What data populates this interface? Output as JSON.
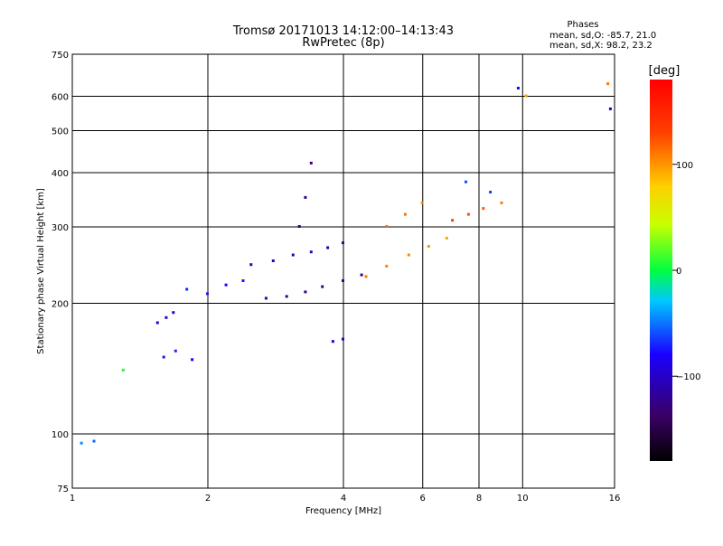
{
  "chart_data": {
    "type": "scatter",
    "title": "Tromsø 20171013 14:12:00–14:13:43",
    "subtitle": "RwPretec (8p)",
    "xlabel": "Frequency [MHz]",
    "ylabel": "Stationary phase Virtual Height [km]",
    "x_scale": "log",
    "y_scale": "log",
    "xlim": [
      1,
      16
    ],
    "ylim": [
      75,
      750
    ],
    "x_ticks": [
      1,
      2,
      4,
      6,
      8,
      10,
      16
    ],
    "x_tick_labels": [
      "1",
      "2",
      "4",
      "6",
      "8",
      "10",
      "16"
    ],
    "y_ticks": [
      75,
      100,
      200,
      300,
      400,
      500,
      600,
      750
    ],
    "y_tick_labels": [
      "75",
      "100",
      "200",
      "300",
      "400",
      "500",
      "600",
      "750"
    ],
    "grid": true,
    "stats": {
      "header": "Phases",
      "line1": "mean, sd,O: -85.7, 21.0",
      "line2": "mean, sd,X:  98.2, 23.2"
    },
    "colorbar": {
      "label": "[deg]",
      "range": [
        -180,
        180
      ],
      "ticks": [
        100,
        0,
        -100
      ],
      "tick_labels": [
        "100",
        "0",
        "−100"
      ]
    },
    "series": [
      {
        "x": [
          1.05,
          1.12
        ],
        "y": [
          95,
          96
        ],
        "phase": [
          -45,
          -55
        ]
      },
      {
        "x": [
          1.3
        ],
        "y": [
          140
        ],
        "phase": [
          5
        ]
      },
      {
        "x": [
          1.55,
          1.62,
          1.68
        ],
        "y": [
          180,
          185,
          190
        ],
        "phase": [
          -95,
          -100,
          -100
        ]
      },
      {
        "x": [
          1.6,
          1.7,
          1.85
        ],
        "y": [
          150,
          155,
          148
        ],
        "phase": [
          -75,
          -70,
          -80
        ]
      },
      {
        "x": [
          1.8,
          2.0,
          2.2,
          2.4
        ],
        "y": [
          215,
          210,
          220,
          225
        ],
        "phase": [
          -70,
          -75,
          -80,
          -75
        ]
      },
      {
        "x": [
          2.5,
          2.8,
          3.1,
          3.4,
          3.7,
          4.0
        ],
        "y": [
          245,
          250,
          258,
          262,
          268,
          275
        ],
        "phase": [
          -100,
          -105,
          -110,
          -110,
          -115,
          -115
        ]
      },
      {
        "x": [
          2.7,
          3.0,
          3.3,
          3.6,
          4.0,
          4.4
        ],
        "y": [
          205,
          207,
          212,
          218,
          225,
          232
        ],
        "phase": [
          -120,
          -122,
          -125,
          -125,
          -128,
          -128
        ]
      },
      {
        "x": [
          3.2,
          3.3,
          3.4
        ],
        "y": [
          300,
          350,
          420
        ],
        "phase": [
          -120,
          -125,
          -130
        ]
      },
      {
        "x": [
          3.8,
          4.0
        ],
        "y": [
          163,
          165
        ],
        "phase": [
          -95,
          -100
        ]
      },
      {
        "x": [
          4.5,
          5.0,
          5.6,
          6.2,
          6.8
        ],
        "y": [
          230,
          243,
          258,
          270,
          282
        ],
        "phase": [
          110,
          108,
          105,
          100,
          95
        ]
      },
      {
        "x": [
          5.0,
          5.5,
          6.0
        ],
        "y": [
          300,
          320,
          340
        ],
        "phase": [
          115,
          112,
          105
        ]
      },
      {
        "x": [
          7.0,
          7.6,
          8.2,
          9.0
        ],
        "y": [
          310,
          320,
          330,
          340
        ],
        "phase": [
          130,
          125,
          120,
          110
        ]
      },
      {
        "x": [
          7.5,
          8.5
        ],
        "y": [
          380,
          360
        ],
        "phase": [
          -60,
          -65
        ]
      },
      {
        "x": [
          9.8,
          10.2,
          15.5,
          15.7
        ],
        "y": [
          625,
          600,
          640,
          560
        ],
        "phase": [
          -80,
          95,
          110,
          -110
        ]
      }
    ]
  }
}
